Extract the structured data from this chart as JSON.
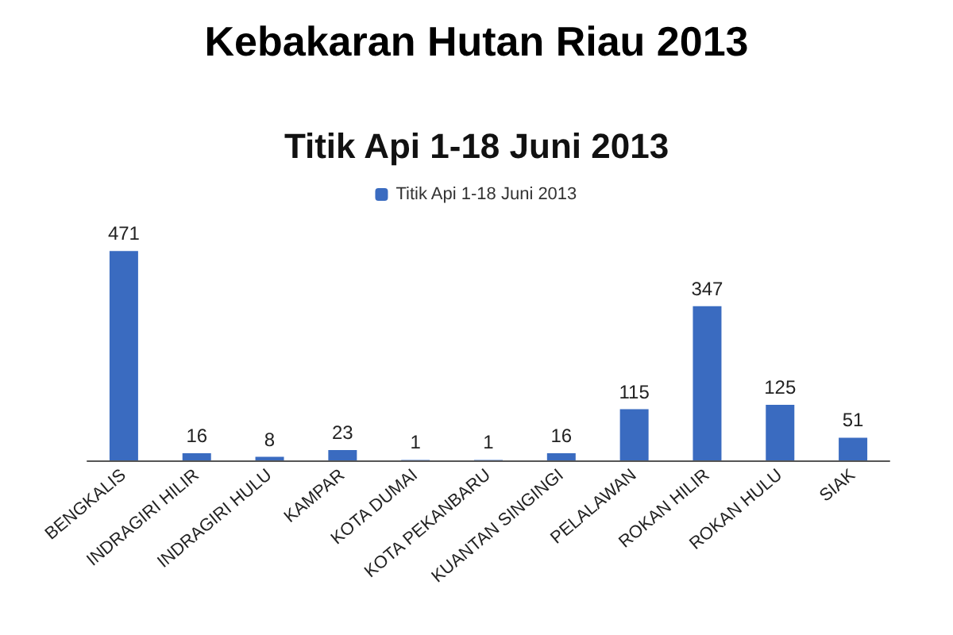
{
  "chart_data": {
    "type": "bar",
    "title": "Kebakaran Hutan Riau 2013",
    "subtitle": "Titik Api 1-18 Juni 2013",
    "categories": [
      "BENGKALIS",
      "INDRAGIRI HILIR",
      "INDRAGIRI HULU",
      "KAMPAR",
      "KOTA DUMAI",
      "KOTA PEKANBARU",
      "KUANTAN SINGINGI",
      "PELALAWAN",
      "ROKAN HILIR",
      "ROKAN HULU",
      "SIAK"
    ],
    "series": [
      {
        "name": "Titik Api 1-18 Juni 2013",
        "color": "#3a6bc0",
        "values": [
          471,
          16,
          8,
          23,
          1,
          1,
          16,
          115,
          347,
          125,
          51
        ]
      }
    ],
    "data_labels": true,
    "legend": "top"
  }
}
